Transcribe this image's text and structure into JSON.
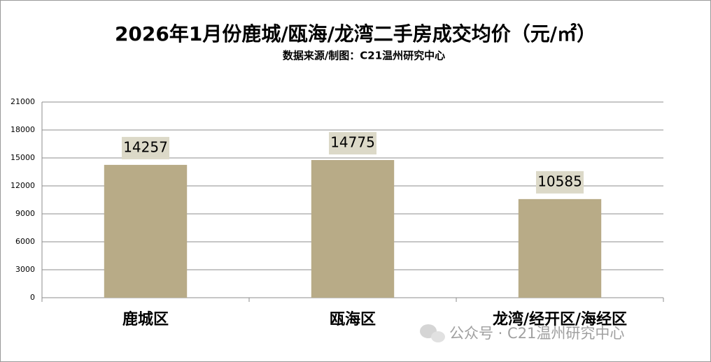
{
  "chart_data": {
    "type": "bar",
    "title": "2026年1月份鹿城/瓯海/龙湾二手房成交均价（元/㎡）",
    "subtitle": "数据来源/制图：C21温州研究中心",
    "categories": [
      "鹿城区",
      "瓯海区",
      "龙湾/经开区/海经区"
    ],
    "values": [
      14257,
      14775,
      10585
    ],
    "color": "#b8ab87",
    "ylim": [
      0,
      21000
    ],
    "yticks": [
      0,
      3000,
      6000,
      9000,
      12000,
      15000,
      18000,
      21000
    ],
    "grid": true,
    "annotation": "公众号 · C21温州研究中心"
  }
}
